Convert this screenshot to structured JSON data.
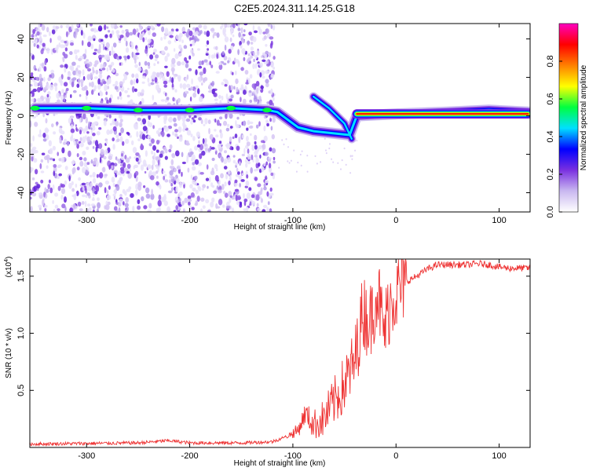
{
  "title": "C2E5.2024.311.14.25.G18",
  "chart_data": [
    {
      "type": "heatmap",
      "xlabel": "Height of straight line (km)",
      "ylabel": "Frequency (Hz)",
      "xlim": [
        -355,
        130
      ],
      "ylim": [
        -50,
        48
      ],
      "xticks": [
        -300,
        -200,
        -100,
        0,
        100
      ],
      "yticks": [
        -40,
        -20,
        0,
        20,
        40
      ],
      "colorbar": {
        "label": "Normalized spectral amplitude",
        "range": [
          0,
          1
        ],
        "ticks": [
          "0.0",
          "0.2",
          "0.4",
          "0.6",
          "0.8"
        ],
        "tick_values": [
          0,
          0.2,
          0.4,
          0.6,
          0.8
        ],
        "colormap": [
          "#ffffff",
          "#c9b8f0",
          "#7a30e0",
          "#0000ff",
          "#00e0ff",
          "#00ff40",
          "#ffff00",
          "#ff8000",
          "#ff0000",
          "#ff00c0"
        ]
      },
      "ridge": [
        {
          "x": -350,
          "y": 4
        },
        {
          "x": -300,
          "y": 4
        },
        {
          "x": -250,
          "y": 3
        },
        {
          "x": -200,
          "y": 3
        },
        {
          "x": -160,
          "y": 4
        },
        {
          "x": -125,
          "y": 3
        },
        {
          "x": -115,
          "y": 2
        },
        {
          "x": -95,
          "y": -6
        },
        {
          "x": -80,
          "y": -8
        },
        {
          "x": -45,
          "y": -10
        },
        {
          "x": -38,
          "y": 0
        },
        {
          "x": 0,
          "y": 1
        },
        {
          "x": 50,
          "y": 2
        },
        {
          "x": 90,
          "y": 3
        },
        {
          "x": 128,
          "y": 2
        }
      ],
      "secondary_branch": [
        {
          "x": -80,
          "y": 10
        },
        {
          "x": -65,
          "y": 4
        },
        {
          "x": -50,
          "y": -4
        },
        {
          "x": -43,
          "y": -12
        }
      ],
      "strong_band": {
        "x_start": -38,
        "x_end": 128,
        "y": 1,
        "amplitude": 1.0
      }
    },
    {
      "type": "line",
      "xlabel": "Height of straight line (km)",
      "ylabel": "SNR (10 * v/v)",
      "y_multiplier": "(x10",
      "y_multiplier_exp": "4",
      "y_multiplier_close": ")",
      "xlim": [
        -355,
        130
      ],
      "ylim": [
        0,
        1.65
      ],
      "xticks": [
        -300,
        -200,
        -100,
        0,
        100
      ],
      "yticks": [
        0.5,
        1.0,
        1.5
      ],
      "ytick_labels": [
        "0.5",
        "1.0",
        "1.5"
      ],
      "color": "#ee3333",
      "series": [
        {
          "x": [
            -355,
            -300,
            -250,
            -220,
            -200,
            -150,
            -120,
            -105,
            -95,
            -88,
            -80,
            -70,
            -60,
            -50,
            -40,
            -32,
            -25,
            -18,
            -12,
            -5,
            0,
            10,
            20,
            30,
            40,
            50,
            60,
            70,
            80,
            90,
            100,
            110,
            120,
            130
          ],
          "y": [
            0.03,
            0.035,
            0.04,
            0.06,
            0.04,
            0.04,
            0.05,
            0.1,
            0.15,
            0.3,
            0.2,
            0.25,
            0.4,
            0.55,
            0.75,
            1.2,
            1.1,
            1.4,
            1.0,
            1.3,
            1.35,
            1.45,
            1.5,
            1.56,
            1.6,
            1.6,
            1.6,
            1.6,
            1.61,
            1.6,
            1.58,
            1.57,
            1.57,
            1.57
          ]
        }
      ]
    }
  ]
}
